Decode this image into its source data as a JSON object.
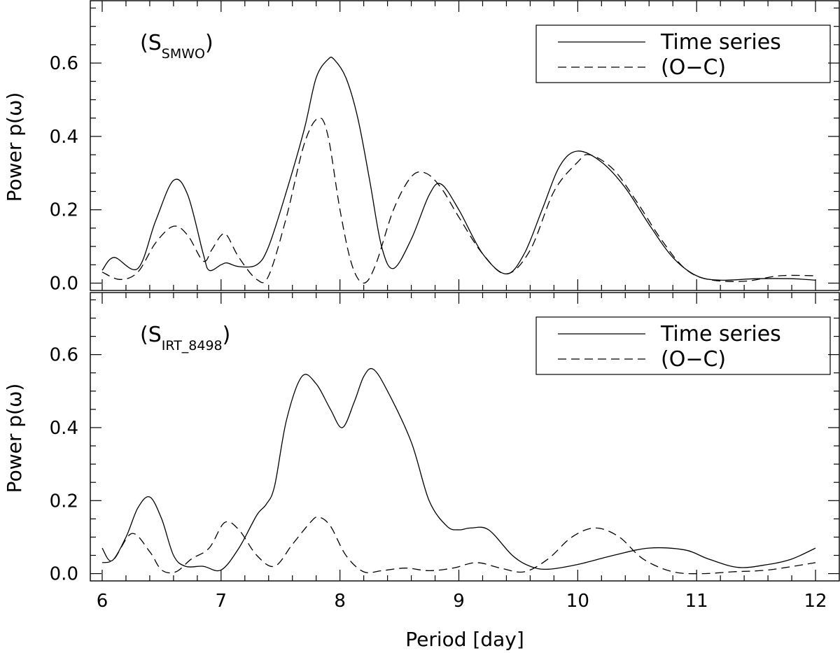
{
  "chart_data": {
    "type": "line",
    "xlabel": "Period [day]",
    "xlim": [
      5.9,
      12.2
    ],
    "x_ticks": [
      "6",
      "7",
      "8",
      "9",
      "10",
      "11",
      "12"
    ],
    "y_tick_labels": [
      "0.0",
      "0.2",
      "0.4",
      "0.6"
    ],
    "panels": [
      {
        "label_main": "S",
        "label_sub": "SMWO",
        "ylabel": "Power p(ω)",
        "ylim": [
          -0.02,
          0.77
        ],
        "legend": {
          "position": "top-right",
          "entries": [
            "Time series",
            "(O−C)"
          ]
        },
        "series": [
          {
            "name": "Time series",
            "style": "solid",
            "x": [
              6.0,
              6.1,
              6.3,
              6.45,
              6.6,
              6.72,
              6.85,
              6.9,
              7.0,
              7.05,
              7.15,
              7.3,
              7.4,
              7.55,
              7.7,
              7.8,
              7.9,
              7.95,
              8.05,
              8.15,
              8.25,
              8.35,
              8.45,
              8.6,
              8.75,
              8.85,
              9.0,
              9.2,
              9.4,
              9.55,
              9.7,
              9.85,
              10.0,
              10.2,
              10.4,
              10.6,
              10.8,
              11.0,
              11.2,
              11.5,
              11.8,
              12.0
            ],
            "y": [
              0.035,
              0.07,
              0.04,
              0.17,
              0.28,
              0.24,
              0.08,
              0.035,
              0.05,
              0.055,
              0.045,
              0.05,
              0.1,
              0.25,
              0.42,
              0.56,
              0.61,
              0.61,
              0.56,
              0.45,
              0.28,
              0.1,
              0.04,
              0.12,
              0.24,
              0.27,
              0.2,
              0.08,
              0.025,
              0.08,
              0.2,
              0.32,
              0.36,
              0.33,
              0.26,
              0.16,
              0.07,
              0.02,
              0.008,
              0.012,
              0.012,
              0.008
            ]
          },
          {
            "name": "(O−C)",
            "style": "dashed",
            "x": [
              6.0,
              6.15,
              6.3,
              6.45,
              6.6,
              6.72,
              6.85,
              6.92,
              7.0,
              7.05,
              7.15,
              7.3,
              7.4,
              7.55,
              7.7,
              7.82,
              7.9,
              8.0,
              8.1,
              8.2,
              8.3,
              8.45,
              8.6,
              8.72,
              8.85,
              9.0,
              9.2,
              9.4,
              9.6,
              9.8,
              10.0,
              10.1,
              10.3,
              10.5,
              10.7,
              10.9,
              11.1,
              11.4,
              11.7,
              12.0
            ],
            "y": [
              0.03,
              0.01,
              0.03,
              0.11,
              0.155,
              0.13,
              0.06,
              0.09,
              0.13,
              0.13,
              0.07,
              0.01,
              0.02,
              0.18,
              0.38,
              0.45,
              0.4,
              0.2,
              0.05,
              0.0,
              0.05,
              0.2,
              0.29,
              0.3,
              0.26,
              0.18,
              0.08,
              0.025,
              0.09,
              0.25,
              0.33,
              0.35,
              0.31,
              0.22,
              0.12,
              0.04,
              0.01,
              0.005,
              0.02,
              0.02
            ]
          }
        ]
      },
      {
        "label_main": "S",
        "label_sub": "IRT_8498",
        "ylabel": "Power p(ω)",
        "ylim": [
          -0.02,
          0.77
        ],
        "legend": {
          "position": "top-right",
          "entries": [
            "Time series",
            "(O−C)"
          ]
        },
        "series": [
          {
            "name": "Time series",
            "style": "solid",
            "x": [
              6.0,
              6.08,
              6.2,
              6.3,
              6.4,
              6.5,
              6.6,
              6.7,
              6.85,
              7.0,
              7.15,
              7.3,
              7.38,
              7.45,
              7.55,
              7.68,
              7.8,
              7.92,
              8.02,
              8.12,
              8.2,
              8.28,
              8.4,
              8.6,
              8.75,
              8.9,
              9.0,
              9.1,
              9.25,
              9.45,
              9.6,
              9.75,
              10.0,
              10.3,
              10.6,
              10.9,
              11.1,
              11.35,
              11.6,
              11.8,
              12.0
            ],
            "y": [
              0.07,
              0.035,
              0.1,
              0.18,
              0.21,
              0.15,
              0.05,
              0.02,
              0.02,
              0.01,
              0.07,
              0.16,
              0.19,
              0.24,
              0.42,
              0.54,
              0.52,
              0.45,
              0.4,
              0.47,
              0.54,
              0.56,
              0.5,
              0.36,
              0.2,
              0.13,
              0.12,
              0.125,
              0.12,
              0.05,
              0.02,
              0.012,
              0.025,
              0.05,
              0.07,
              0.065,
              0.04,
              0.017,
              0.025,
              0.04,
              0.07
            ]
          },
          {
            "name": "(O−C)",
            "style": "dashed",
            "x": [
              6.0,
              6.1,
              6.25,
              6.4,
              6.5,
              6.62,
              6.75,
              6.9,
              7.03,
              7.15,
              7.3,
              7.45,
              7.6,
              7.75,
              7.82,
              7.92,
              8.05,
              8.2,
              8.35,
              8.55,
              8.75,
              8.95,
              9.15,
              9.35,
              9.55,
              9.75,
              9.95,
              10.15,
              10.35,
              10.55,
              10.8,
              11.05,
              11.3,
              11.6,
              12.0
            ],
            "y": [
              0.03,
              0.04,
              0.11,
              0.06,
              0.01,
              0.005,
              0.04,
              0.07,
              0.14,
              0.12,
              0.05,
              0.02,
              0.08,
              0.14,
              0.155,
              0.13,
              0.05,
              0.005,
              0.008,
              0.015,
              0.008,
              0.015,
              0.03,
              0.015,
              0.005,
              0.04,
              0.1,
              0.125,
              0.1,
              0.04,
              0.005,
              0.0,
              0.005,
              0.01,
              0.03
            ]
          }
        ]
      }
    ]
  }
}
